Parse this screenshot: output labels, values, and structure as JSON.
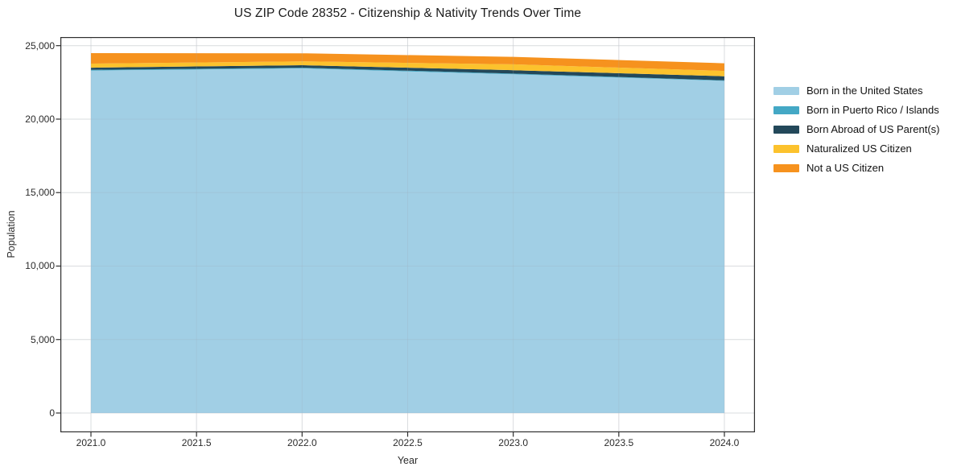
{
  "title": "US ZIP Code 28352 - Citizenship & Nativity Trends Over Time",
  "chart_data": {
    "type": "area",
    "stacked": true,
    "title": "US ZIP Code 28352 - Citizenship & Nativity Trends Over Time",
    "xlabel": "Year",
    "ylabel": "Population",
    "x": [
      2021,
      2022,
      2023,
      2024
    ],
    "series": [
      {
        "name": "Born in the United States",
        "color": "#a1cfe5",
        "values": [
          23300,
          23450,
          23050,
          22600
        ]
      },
      {
        "name": "Born in Puerto Rico / Islands",
        "color": "#44a8c5",
        "values": [
          50,
          50,
          50,
          40
        ]
      },
      {
        "name": "Born Abroad of US Parent(s)",
        "color": "#23485a",
        "values": [
          150,
          170,
          230,
          280
        ]
      },
      {
        "name": "Naturalized US Citizen",
        "color": "#fcc22d",
        "values": [
          280,
          260,
          400,
          360
        ]
      },
      {
        "name": "Not a US Citizen",
        "color": "#f6921e",
        "values": [
          710,
          550,
          510,
          520
        ]
      }
    ],
    "totals": [
      24490,
      24480,
      24240,
      23800
    ],
    "xlim": [
      2020.85,
      2024.15
    ],
    "ylim": [
      -1300,
      25600
    ],
    "xticks": {
      "values": [
        2021.0,
        2021.5,
        2022.0,
        2022.5,
        2023.0,
        2023.5,
        2024.0
      ],
      "labels": [
        "2021.0",
        "2021.5",
        "2022.0",
        "2022.5",
        "2023.0",
        "2023.5",
        "2024.0"
      ]
    },
    "yticks": {
      "values": [
        0,
        5000,
        10000,
        15000,
        20000,
        25000
      ],
      "labels": [
        "0",
        "5,000",
        "10,000",
        "15,000",
        "20,000",
        "25,000"
      ]
    },
    "grid": true,
    "frame_color": "#2e2e2e",
    "grid_color": "#ebebeb",
    "legend_position": "right-of-plot"
  }
}
